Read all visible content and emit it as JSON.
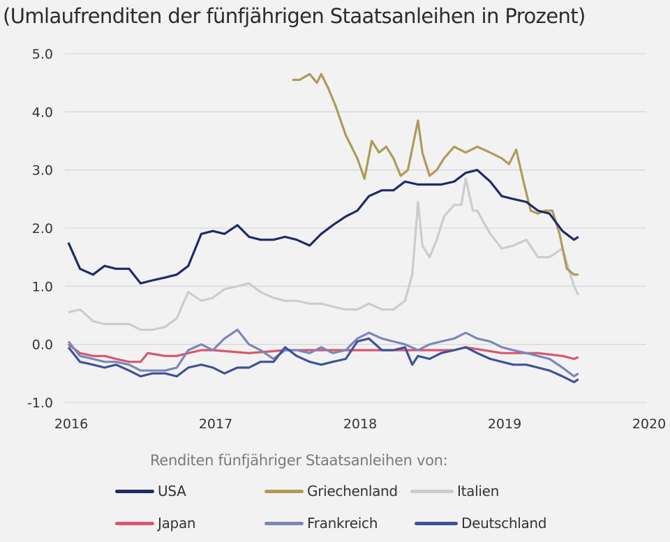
{
  "chart_data": {
    "type": "line",
    "title": "(Umlaufrenditen der fünfjährigen Staatsanleihen in Prozent)",
    "xlim": [
      2016,
      2020
    ],
    "ylim": [
      -1.0,
      5.0
    ],
    "x_ticks": [
      "2016",
      "2017",
      "2018",
      "2019",
      "2020"
    ],
    "y_ticks": [
      "5.0",
      "4.0",
      "3.0",
      "2.0",
      "1.0",
      "0.0",
      "-1.0"
    ],
    "grid": "horizontal",
    "legend_title": "Renditen fünfjähriger Staatsanleihen von:",
    "legend_position": "bottom",
    "series": [
      {
        "name": "USA",
        "color": "#1f2a6b",
        "x": [
          2016.0,
          2016.08,
          2016.17,
          2016.25,
          2016.33,
          2016.42,
          2016.5,
          2016.58,
          2016.67,
          2016.75,
          2016.83,
          2016.92,
          2017.0,
          2017.08,
          2017.17,
          2017.25,
          2017.33,
          2017.42,
          2017.5,
          2017.58,
          2017.67,
          2017.75,
          2017.83,
          2017.92,
          2018.0,
          2018.08,
          2018.17,
          2018.25,
          2018.33,
          2018.42,
          2018.5,
          2018.58,
          2018.67,
          2018.75,
          2018.83,
          2018.92,
          2019.0,
          2019.08,
          2019.17,
          2019.25,
          2019.33,
          2019.42,
          2019.5,
          2019.53
        ],
        "y": [
          1.75,
          1.3,
          1.2,
          1.35,
          1.3,
          1.3,
          1.05,
          1.1,
          1.15,
          1.2,
          1.35,
          1.9,
          1.95,
          1.9,
          2.05,
          1.85,
          1.8,
          1.8,
          1.85,
          1.8,
          1.7,
          1.9,
          2.05,
          2.2,
          2.3,
          2.55,
          2.65,
          2.65,
          2.8,
          2.75,
          2.75,
          2.75,
          2.8,
          2.95,
          3.0,
          2.8,
          2.55,
          2.5,
          2.45,
          2.3,
          2.25,
          1.95,
          1.8,
          1.85
        ]
      },
      {
        "name": "Griechenland",
        "color": "#b09a5a",
        "x": [
          2017.55,
          2017.6,
          2017.67,
          2017.72,
          2017.75,
          2017.8,
          2017.85,
          2017.92,
          2018.0,
          2018.05,
          2018.1,
          2018.15,
          2018.2,
          2018.25,
          2018.3,
          2018.35,
          2018.42,
          2018.45,
          2018.5,
          2018.55,
          2018.6,
          2018.67,
          2018.75,
          2018.83,
          2018.92,
          2019.0,
          2019.05,
          2019.1,
          2019.15,
          2019.2,
          2019.25,
          2019.3,
          2019.35,
          2019.4,
          2019.45,
          2019.5,
          2019.53
        ],
        "y": [
          4.55,
          4.55,
          4.65,
          4.5,
          4.65,
          4.4,
          4.1,
          3.6,
          3.2,
          2.85,
          3.5,
          3.3,
          3.4,
          3.2,
          2.9,
          3.0,
          3.85,
          3.3,
          2.9,
          3.0,
          3.2,
          3.4,
          3.3,
          3.4,
          3.3,
          3.2,
          3.1,
          3.35,
          2.8,
          2.3,
          2.25,
          2.3,
          2.3,
          1.9,
          1.3,
          1.2,
          1.2
        ]
      },
      {
        "name": "Italien",
        "color": "#cccccc",
        "x": [
          2016.0,
          2016.08,
          2016.17,
          2016.25,
          2016.33,
          2016.42,
          2016.5,
          2016.58,
          2016.67,
          2016.75,
          2016.83,
          2016.92,
          2017.0,
          2017.08,
          2017.17,
          2017.25,
          2017.33,
          2017.42,
          2017.5,
          2017.58,
          2017.67,
          2017.75,
          2017.83,
          2017.92,
          2018.0,
          2018.08,
          2018.17,
          2018.25,
          2018.33,
          2018.38,
          2018.42,
          2018.45,
          2018.5,
          2018.55,
          2018.6,
          2018.67,
          2018.72,
          2018.75,
          2018.8,
          2018.83,
          2018.92,
          2019.0,
          2019.08,
          2019.17,
          2019.25,
          2019.33,
          2019.42,
          2019.45,
          2019.5,
          2019.53
        ],
        "y": [
          0.55,
          0.6,
          0.4,
          0.35,
          0.35,
          0.35,
          0.25,
          0.25,
          0.3,
          0.45,
          0.9,
          0.75,
          0.8,
          0.95,
          1.0,
          1.05,
          0.9,
          0.8,
          0.75,
          0.75,
          0.7,
          0.7,
          0.65,
          0.6,
          0.6,
          0.7,
          0.6,
          0.6,
          0.75,
          1.2,
          2.45,
          1.7,
          1.5,
          1.8,
          2.2,
          2.4,
          2.4,
          2.85,
          2.3,
          2.3,
          1.9,
          1.65,
          1.7,
          1.8,
          1.5,
          1.5,
          1.65,
          1.4,
          1.0,
          0.85
        ]
      },
      {
        "name": "Japan",
        "color": "#d8566e",
        "x": [
          2016.0,
          2016.08,
          2016.17,
          2016.25,
          2016.33,
          2016.42,
          2016.5,
          2016.55,
          2016.67,
          2016.75,
          2016.83,
          2016.92,
          2017.0,
          2017.25,
          2017.5,
          2017.75,
          2018.0,
          2018.25,
          2018.5,
          2018.67,
          2018.75,
          2019.0,
          2019.25,
          2019.42,
          2019.5,
          2019.53
        ],
        "y": [
          0.0,
          -0.15,
          -0.2,
          -0.2,
          -0.25,
          -0.3,
          -0.3,
          -0.15,
          -0.2,
          -0.2,
          -0.15,
          -0.1,
          -0.1,
          -0.15,
          -0.1,
          -0.1,
          -0.1,
          -0.1,
          -0.1,
          -0.1,
          -0.05,
          -0.15,
          -0.15,
          -0.2,
          -0.25,
          -0.22
        ]
      },
      {
        "name": "Frankreich",
        "color": "#7b87b8",
        "x": [
          2016.0,
          2016.08,
          2016.17,
          2016.25,
          2016.33,
          2016.42,
          2016.5,
          2016.58,
          2016.67,
          2016.75,
          2016.83,
          2016.92,
          2017.0,
          2017.08,
          2017.17,
          2017.25,
          2017.33,
          2017.42,
          2017.5,
          2017.58,
          2017.67,
          2017.75,
          2017.83,
          2017.92,
          2018.0,
          2018.08,
          2018.17,
          2018.25,
          2018.33,
          2018.42,
          2018.5,
          2018.58,
          2018.67,
          2018.75,
          2018.83,
          2018.92,
          2019.0,
          2019.08,
          2019.17,
          2019.25,
          2019.33,
          2019.42,
          2019.5,
          2019.53
        ],
        "y": [
          0.05,
          -0.2,
          -0.25,
          -0.3,
          -0.3,
          -0.35,
          -0.45,
          -0.45,
          -0.45,
          -0.4,
          -0.1,
          0.0,
          -0.1,
          0.1,
          0.25,
          0.0,
          -0.1,
          -0.25,
          -0.1,
          -0.1,
          -0.15,
          -0.05,
          -0.15,
          -0.1,
          0.1,
          0.2,
          0.1,
          0.05,
          0.0,
          -0.1,
          0.0,
          0.05,
          0.1,
          0.2,
          0.1,
          0.05,
          -0.05,
          -0.1,
          -0.15,
          -0.2,
          -0.25,
          -0.4,
          -0.55,
          -0.5
        ]
      },
      {
        "name": "Deutschland",
        "color": "#3e5299",
        "x": [
          2016.0,
          2016.08,
          2016.17,
          2016.25,
          2016.33,
          2016.42,
          2016.5,
          2016.58,
          2016.67,
          2016.75,
          2016.83,
          2016.92,
          2017.0,
          2017.08,
          2017.17,
          2017.25,
          2017.33,
          2017.42,
          2017.5,
          2017.58,
          2017.67,
          2017.75,
          2017.83,
          2017.92,
          2018.0,
          2018.08,
          2018.17,
          2018.25,
          2018.33,
          2018.38,
          2018.42,
          2018.5,
          2018.58,
          2018.67,
          2018.75,
          2018.83,
          2018.92,
          2019.0,
          2019.08,
          2019.17,
          2019.25,
          2019.33,
          2019.42,
          2019.5,
          2019.53
        ],
        "y": [
          -0.05,
          -0.3,
          -0.35,
          -0.4,
          -0.35,
          -0.45,
          -0.55,
          -0.5,
          -0.5,
          -0.55,
          -0.4,
          -0.35,
          -0.4,
          -0.5,
          -0.4,
          -0.4,
          -0.3,
          -0.3,
          -0.05,
          -0.2,
          -0.3,
          -0.35,
          -0.3,
          -0.25,
          0.05,
          0.1,
          -0.1,
          -0.1,
          -0.05,
          -0.35,
          -0.2,
          -0.25,
          -0.15,
          -0.1,
          -0.05,
          -0.15,
          -0.25,
          -0.3,
          -0.35,
          -0.35,
          -0.4,
          -0.45,
          -0.55,
          -0.65,
          -0.6
        ]
      }
    ]
  }
}
